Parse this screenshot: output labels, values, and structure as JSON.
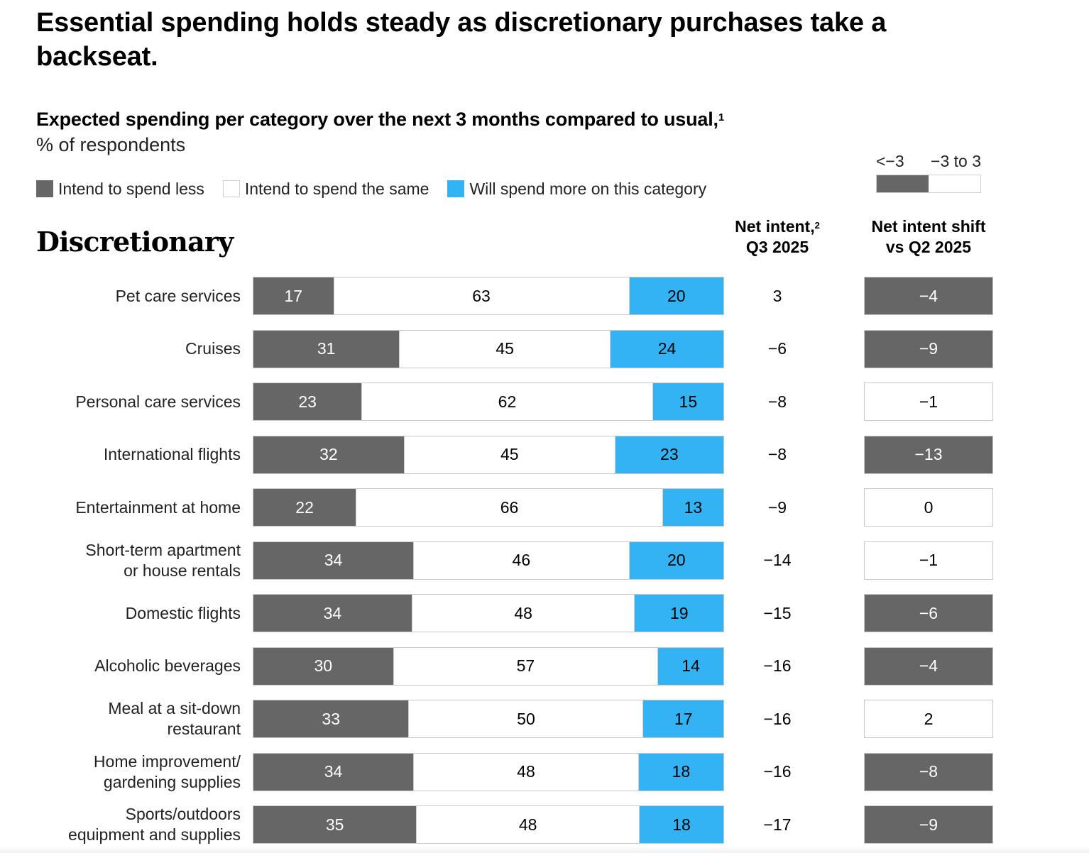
{
  "title": "Essential spending holds steady as discretionary purchases take a backseat.",
  "subtitle": "Expected spending per category over the next 3 months compared to usual,",
  "subtitle_footnote": "1",
  "unit": "% of respondents",
  "legend": {
    "less": "Intend to spend less",
    "same": "Intend to spend the same",
    "more": "Will spend more on this category"
  },
  "shift_legend": {
    "dark_label": "<−3",
    "light_label": "−3 to 3"
  },
  "section_title": "Discretionary",
  "columns": {
    "net_intent_line1": "Net intent,",
    "net_intent_footnote": "2",
    "net_intent_line2": "Q3 2025",
    "shift_line1": "Net intent shift",
    "shift_line2": "vs Q2 2025"
  },
  "colors": {
    "less": "#666666",
    "same": "#ffffff",
    "more": "#33b2f4"
  },
  "chart_data": {
    "type": "bar",
    "orientation": "horizontal",
    "stacked": true,
    "title": "Expected spending per category over the next 3 months compared to usual",
    "unit": "% of respondents",
    "categories": [
      "Pet care services",
      "Cruises",
      "Personal care services",
      "International flights",
      "Entertainment at home",
      "Short-term apartment\nor house rentals",
      "Domestic flights",
      "Alcoholic beverages",
      "Meal at a sit-down\nrestaurant",
      "Home improvement/\ngardening supplies",
      "Sports/outdoors\nequipment and supplies"
    ],
    "series": [
      {
        "name": "Intend to spend less",
        "values": [
          17,
          31,
          23,
          32,
          22,
          34,
          34,
          30,
          33,
          34,
          35
        ]
      },
      {
        "name": "Intend to spend the same",
        "values": [
          63,
          45,
          62,
          45,
          66,
          46,
          48,
          57,
          50,
          48,
          48
        ]
      },
      {
        "name": "Will spend more on this category",
        "values": [
          20,
          24,
          15,
          23,
          13,
          20,
          19,
          14,
          17,
          18,
          18
        ]
      }
    ],
    "net_intent_q3_2025": [
      "3",
      "−6",
      "−8",
      "−8",
      "−9",
      "−14",
      "−15",
      "−16",
      "−16",
      "−16",
      "−17"
    ],
    "net_intent_shift_vs_q2_2025": [
      "−4",
      "−9",
      "−1",
      "−13",
      "0",
      "−1",
      "−6",
      "−4",
      "2",
      "−8",
      "−9"
    ],
    "shift_values_numeric": [
      -4,
      -9,
      -1,
      -13,
      0,
      -1,
      -6,
      -4,
      2,
      -8,
      -9
    ],
    "shift_threshold": -3,
    "legend_position": "top-left"
  }
}
